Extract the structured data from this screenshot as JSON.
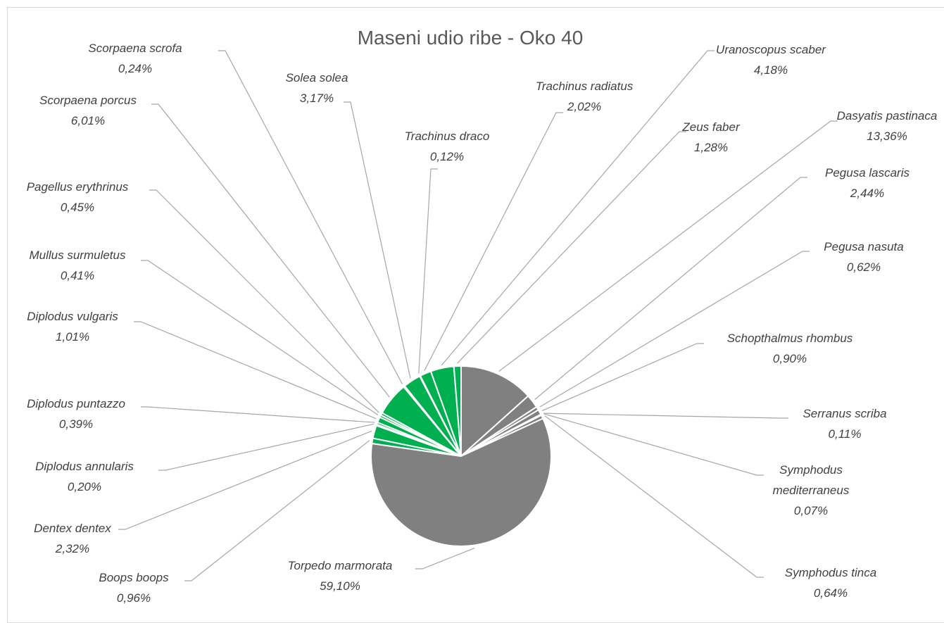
{
  "chart_data": {
    "type": "pie",
    "title": "Maseni udio ribe - Oko 40",
    "categories": [
      "Dasyatis pastinaca",
      "Pegusa lascaris",
      "Pegusa nasuta",
      "Schopthalmus rhombus",
      "Serranus scriba",
      "Symphodus mediterraneus",
      "Symphodus tinca",
      "Torpedo marmorata",
      "Boops boops",
      "Dentex dentex",
      "Diplodus annularis",
      "Diplodus puntazzo",
      "Diplodus vulgaris",
      "Mullus surmuletus",
      "Pagellus erythrinus",
      "Scorpaena porcus",
      "Scorpaena scrofa",
      "Solea solea",
      "Trachinus draco",
      "Trachinus radiatus",
      "Uranoscopus scaber",
      "Zeus faber"
    ],
    "values": [
      13.36,
      2.44,
      0.62,
      0.9,
      0.11,
      0.07,
      0.64,
      59.1,
      0.96,
      2.32,
      0.2,
      0.39,
      1.01,
      0.41,
      0.45,
      6.01,
      0.24,
      3.17,
      0.12,
      2.02,
      4.18,
      1.28
    ],
    "value_labels": [
      "13,36%",
      "2,44%",
      "0,62%",
      "0,90%",
      "0,11%",
      "0,07%",
      "0,64%",
      "59,10%",
      "0,96%",
      "2,32%",
      "0,20%",
      "0,39%",
      "1,01%",
      "0,41%",
      "0,45%",
      "6,01%",
      "0,24%",
      "3,17%",
      "0,12%",
      "2,02%",
      "4,18%",
      "1,28%"
    ],
    "colors": [
      "#808080",
      "#808080",
      "#808080",
      "#808080",
      "#808080",
      "#808080",
      "#808080",
      "#808080",
      "#00b050",
      "#00b050",
      "#00b050",
      "#00b050",
      "#00b050",
      "#00b050",
      "#00b050",
      "#00b050",
      "#00b050",
      "#00b050",
      "#00b050",
      "#00b050",
      "#00b050",
      "#00b050"
    ]
  }
}
